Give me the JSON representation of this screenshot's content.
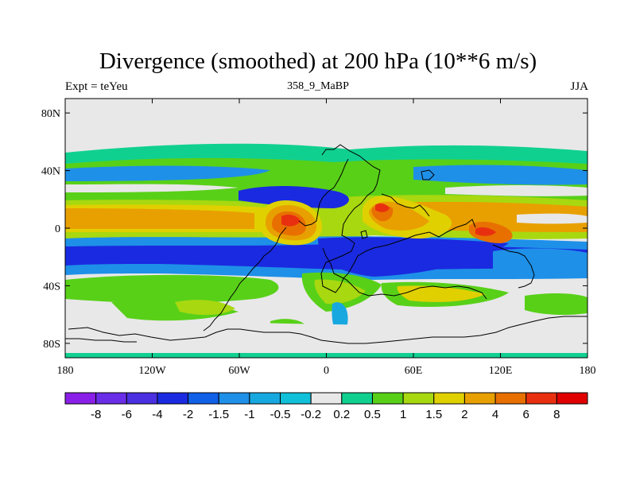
{
  "header": {
    "title": "Divergence (smoothed) at 200 hPa (10**6 m/s)",
    "left_label": "Expt = teYeu",
    "center_label": "358_9_MaBP",
    "right_label": "JJA"
  },
  "chart_data": {
    "type": "heatmap",
    "title": "Divergence (smoothed) at 200 hPa (10**6 m/s)",
    "xlabel": "",
    "ylabel": "",
    "xlim": [
      -180,
      180
    ],
    "ylim": [
      -90,
      90
    ],
    "x_ticks": [
      {
        "value": -180,
        "label": "180"
      },
      {
        "value": -120,
        "label": "120W"
      },
      {
        "value": -60,
        "label": "60W"
      },
      {
        "value": 0,
        "label": "0"
      },
      {
        "value": 60,
        "label": "60E"
      },
      {
        "value": 120,
        "label": "120E"
      },
      {
        "value": 180,
        "label": "180"
      }
    ],
    "y_ticks": [
      {
        "value": 80,
        "label": "80N"
      },
      {
        "value": 40,
        "label": "40N"
      },
      {
        "value": 0,
        "label": "0"
      },
      {
        "value": -40,
        "label": "40S"
      },
      {
        "value": -80,
        "label": "80S"
      }
    ],
    "colorbar": {
      "levels": [
        "-8",
        "-6",
        "-4",
        "-2",
        "-1.5",
        "-1",
        "-0.5",
        "-0.2",
        "0.2",
        "0.5",
        "1",
        "1.5",
        "2",
        "4",
        "6",
        "8"
      ],
      "colors": [
        "#8a20e8",
        "#6a2ee8",
        "#4a30e0",
        "#1a2ae0",
        "#1060e8",
        "#1e90e8",
        "#18a8e0",
        "#10c0d8",
        "#e8e8e8",
        "#10d090",
        "#58d018",
        "#a8d810",
        "#e0d000",
        "#e8a000",
        "#e87000",
        "#e83010",
        "#e00000"
      ]
    },
    "field_features": [
      {
        "kind": "divergence",
        "level": "4",
        "lon": -30,
        "lat": 2
      },
      {
        "kind": "divergence",
        "level": "4",
        "lon": 35,
        "lat": 8
      },
      {
        "kind": "divergence",
        "level": "2",
        "lon": 90,
        "lat": 12
      },
      {
        "kind": "divergence",
        "level": "2",
        "lon": 110,
        "lat": -2
      },
      {
        "kind": "divergence",
        "level": "2",
        "lon": 170,
        "lat": 12
      },
      {
        "kind": "convergence",
        "level": "-2",
        "lon": 60,
        "lat": -30
      },
      {
        "kind": "convergence",
        "level": "-2",
        "lon": -45,
        "lat": 25
      }
    ]
  }
}
